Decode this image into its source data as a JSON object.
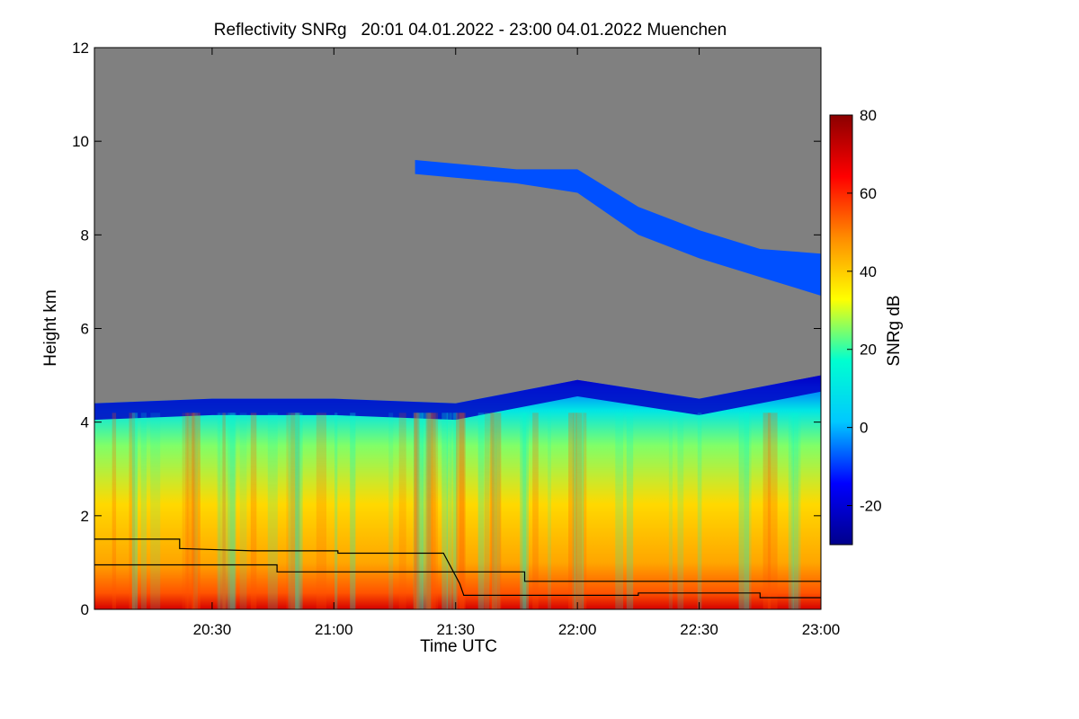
{
  "chart_data": {
    "type": "heatmap",
    "title": "Reflectivity SNRg   20:01 04.01.2022 - 23:00 04.01.2022 Muenchen",
    "xlabel": "Time UTC",
    "ylabel": "Height km",
    "xlim": [
      "20:01",
      "23:00"
    ],
    "ylim": [
      0,
      12
    ],
    "x_ticks": [
      "20:30",
      "21:00",
      "21:30",
      "22:00",
      "22:30",
      "23:00"
    ],
    "y_ticks": [
      0,
      2,
      4,
      6,
      8,
      10,
      12
    ],
    "colorbar": {
      "label": "SNRg dB",
      "range": [
        -30,
        80
      ],
      "ticks": [
        -20,
        0,
        20,
        40,
        60,
        80
      ],
      "colors": [
        "#00008b",
        "#0000ff",
        "#00c8ff",
        "#00ffd0",
        "#ffff00",
        "#ff8c00",
        "#ff0000",
        "#8b0000"
      ]
    },
    "background_color": "#808080",
    "signal_top_km": [
      {
        "time": "20:01",
        "height": 4.4
      },
      {
        "time": "20:30",
        "height": 4.5
      },
      {
        "time": "21:00",
        "height": 4.5
      },
      {
        "time": "21:30",
        "height": 4.4
      },
      {
        "time": "22:00",
        "height": 4.9
      },
      {
        "time": "22:30",
        "height": 4.5
      },
      {
        "time": "23:00",
        "height": 5.0
      }
    ],
    "cirrus_layer": [
      {
        "time": "21:20",
        "bottom": 9.3,
        "top": 9.6,
        "snr": -15
      },
      {
        "time": "21:45",
        "bottom": 9.1,
        "top": 9.4,
        "snr": -10
      },
      {
        "time": "22:00",
        "bottom": 8.9,
        "top": 9.4,
        "snr": -10
      },
      {
        "time": "22:15",
        "bottom": 8.0,
        "top": 8.6,
        "snr": -8
      },
      {
        "time": "22:30",
        "bottom": 7.5,
        "top": 8.1,
        "snr": -8
      },
      {
        "time": "22:45",
        "bottom": 7.1,
        "top": 7.7,
        "snr": -8
      },
      {
        "time": "23:00",
        "bottom": 6.7,
        "top": 7.6,
        "snr": -8
      }
    ],
    "series": [
      {
        "values": [
          {
            "time": "20:01",
            "height": 1.5
          },
          {
            "time": "20:22",
            "height": 1.5
          },
          {
            "time": "20:22",
            "height": 1.3
          },
          {
            "time": "20:40",
            "height": 1.25
          },
          {
            "time": "21:01",
            "height": 1.25
          },
          {
            "time": "21:01",
            "height": 1.2
          },
          {
            "time": "21:27",
            "height": 1.2
          },
          {
            "time": "21:31",
            "height": 0.55
          },
          {
            "time": "21:32",
            "height": 0.3
          },
          {
            "time": "22:15",
            "height": 0.3
          },
          {
            "time": "22:15",
            "height": 0.35
          },
          {
            "time": "22:45",
            "height": 0.35
          },
          {
            "time": "22:45",
            "height": 0.25
          },
          {
            "time": "23:00",
            "height": 0.25
          }
        ]
      },
      {
        "values": [
          {
            "time": "20:01",
            "height": 0.95
          },
          {
            "time": "20:46",
            "height": 0.95
          },
          {
            "time": "20:46",
            "height": 0.8
          },
          {
            "time": "21:47",
            "height": 0.8
          },
          {
            "time": "21:47",
            "height": 0.6
          },
          {
            "time": "23:00",
            "height": 0.6
          }
        ]
      }
    ]
  }
}
